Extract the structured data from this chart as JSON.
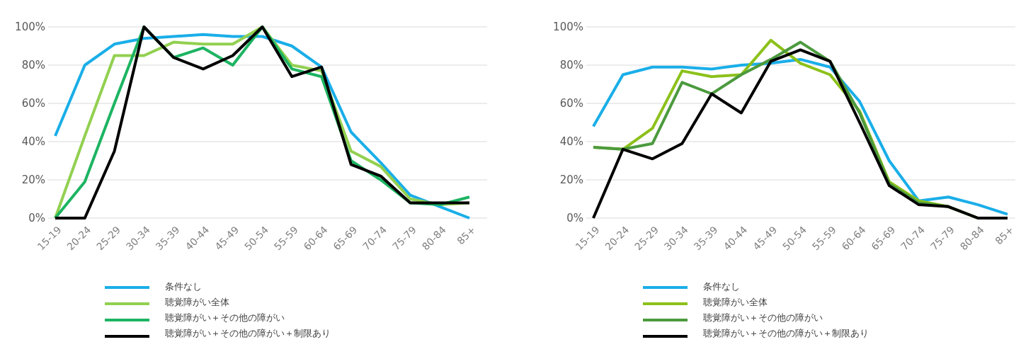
{
  "chart_data": [
    {
      "type": "line",
      "categories": [
        "15-19",
        "20-24",
        "25-29",
        "30-34",
        "35-39",
        "40-44",
        "45-49",
        "50-54",
        "55-59",
        "60-64",
        "65-69",
        "70-74",
        "75-79",
        "80-84",
        "85+"
      ],
      "ylim": [
        0,
        100
      ],
      "yticks": [
        {
          "value": 0,
          "label": "0%"
        },
        {
          "value": 20,
          "label": "20%"
        },
        {
          "value": 40,
          "label": "40%"
        },
        {
          "value": 60,
          "label": "60%"
        },
        {
          "value": 80,
          "label": "80%"
        },
        {
          "value": 100,
          "label": "100%"
        }
      ],
      "grid": "y",
      "legend": "bottom",
      "series": [
        {
          "name": "条件なし",
          "color": "#1aaee8",
          "values": [
            43,
            80,
            91,
            94,
            95,
            96,
            95,
            95,
            90,
            79,
            45,
            29,
            12,
            6,
            0
          ]
        },
        {
          "name": "聴覚障がい全体",
          "color": "#92d050",
          "values": [
            0,
            43,
            85,
            85,
            92,
            91,
            91,
            100,
            80,
            77,
            35,
            27,
            10,
            7,
            8
          ]
        },
        {
          "name": "聴覚障がい＋その他の障がい",
          "color": "#1db462",
          "values": [
            0,
            19,
            60,
            100,
            84,
            89,
            80,
            100,
            78,
            74,
            30,
            20,
            8,
            7,
            11
          ]
        },
        {
          "name": "聴覚障がい＋その他の障がい＋制限あり",
          "color": "#000000",
          "values": [
            0,
            0,
            35,
            100,
            84,
            78,
            85,
            100,
            74,
            79,
            28,
            22,
            8,
            8,
            8
          ]
        }
      ]
    },
    {
      "type": "line",
      "categories": [
        "15-19",
        "20-24",
        "25-29",
        "30-34",
        "35-39",
        "40-44",
        "45-49",
        "50-54",
        "55-59",
        "60-64",
        "65-69",
        "70-74",
        "75-79",
        "80-84",
        "85+"
      ],
      "ylim": [
        0,
        100
      ],
      "yticks": [
        {
          "value": 0,
          "label": "0%"
        },
        {
          "value": 20,
          "label": "20%"
        },
        {
          "value": 40,
          "label": "40%"
        },
        {
          "value": 60,
          "label": "60%"
        },
        {
          "value": 80,
          "label": "80%"
        },
        {
          "value": 100,
          "label": "100%"
        }
      ],
      "grid": "y",
      "legend": "bottom",
      "series": [
        {
          "name": "条件なし",
          "color": "#1aaee8",
          "values": [
            48,
            75,
            79,
            79,
            78,
            80,
            81,
            83,
            79,
            61,
            30,
            9,
            11,
            7,
            2
          ]
        },
        {
          "name": "聴覚障がい全体",
          "color": "#8cc11a",
          "values": [
            37,
            36,
            47,
            77,
            74,
            75,
            93,
            81,
            75,
            56,
            19,
            9,
            6,
            0,
            0
          ]
        },
        {
          "name": "聴覚障がい＋その他の障がい",
          "color": "#4c9a3e",
          "values": [
            37,
            36,
            39,
            71,
            65,
            75,
            83,
            92,
            82,
            55,
            18,
            8,
            6,
            0,
            0
          ]
        },
        {
          "name": "聴覚障がい＋その他の障がい＋制限あり",
          "color": "#000000",
          "values": [
            0,
            36,
            31,
            39,
            65,
            55,
            82,
            88,
            82,
            50,
            17,
            7,
            6,
            0,
            0
          ]
        }
      ]
    }
  ]
}
